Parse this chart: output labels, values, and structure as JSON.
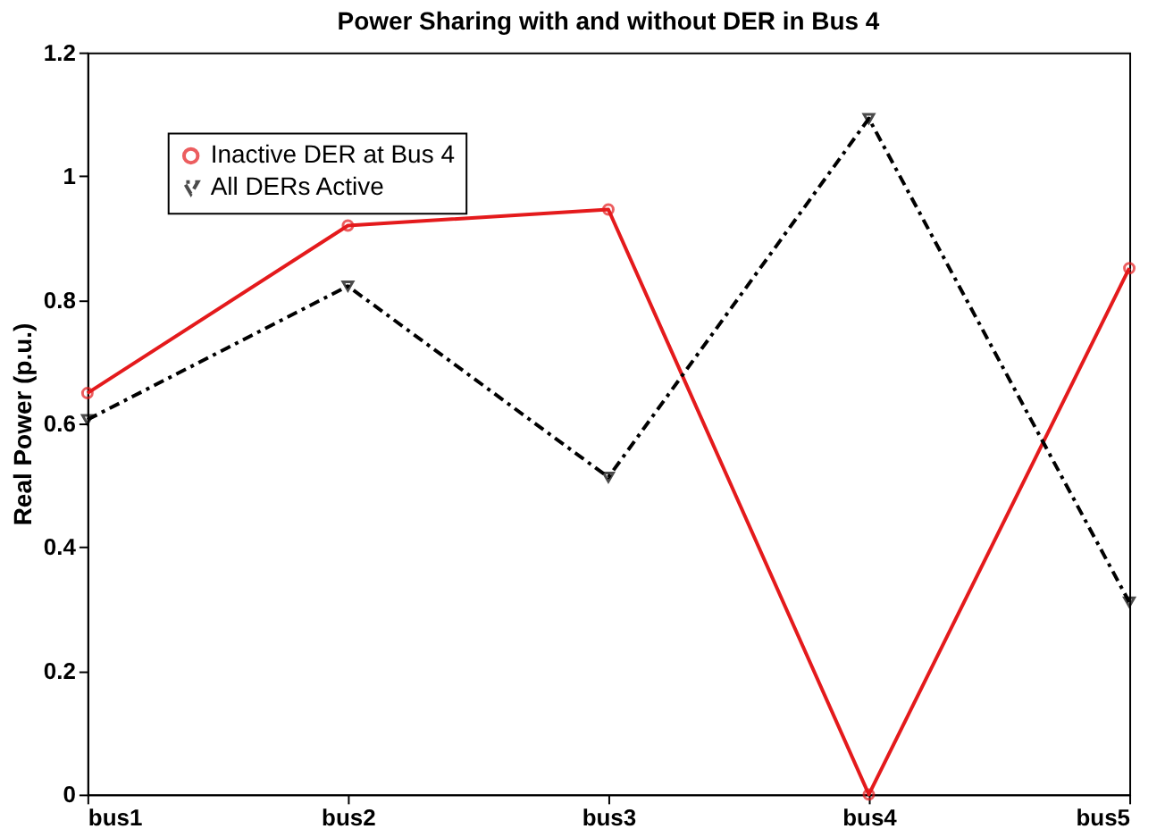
{
  "chart_data": {
    "type": "line",
    "title": "Power Sharing with and without DER in Bus 4",
    "ylabel": "Real Power (p.u.)",
    "categories": [
      "bus1",
      "bus2",
      "bus3",
      "bus4",
      "bus5"
    ],
    "series": [
      {
        "name": "Inactive DER at Bus 4",
        "color": "#e41a1c",
        "values": [
          0.649,
          0.92,
          0.946,
          0.0,
          0.851
        ],
        "marker": "circle",
        "line_style": "solid"
      },
      {
        "name": "All DERs Active",
        "color": "#000000",
        "values": [
          0.606,
          0.822,
          0.513,
          1.093,
          0.311
        ],
        "marker": "triangle",
        "line_style": "dashed"
      }
    ],
    "ylim": [
      0,
      1.2
    ],
    "yticks": [
      0,
      0.2,
      0.4,
      0.6,
      0.8,
      1,
      1.2
    ],
    "grid": false,
    "legend": "top left"
  }
}
